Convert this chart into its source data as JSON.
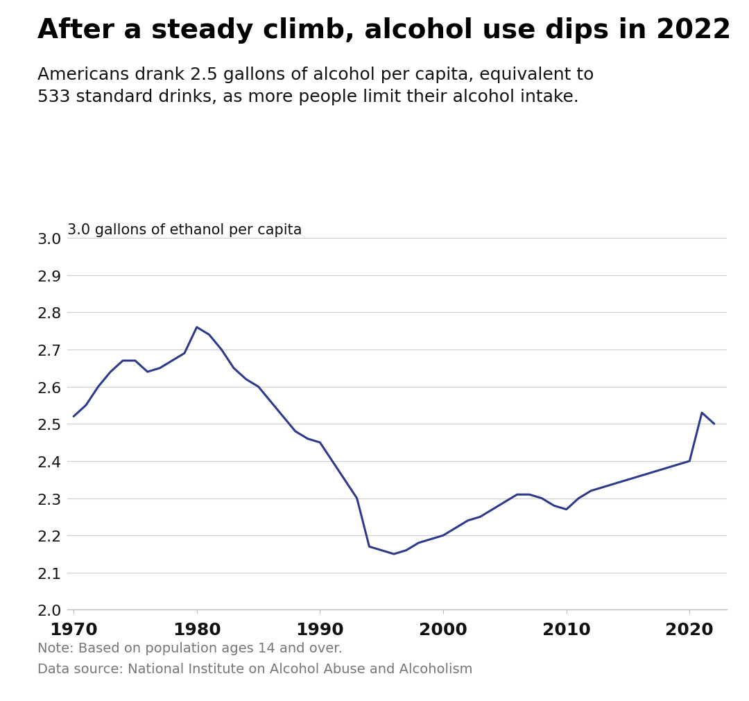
{
  "title": "After a steady climb, alcohol use dips in 2022",
  "subtitle": "Americans drank 2.5 gallons of alcohol per capita, equivalent to\n533 standard drinks, as more people limit their alcohol intake.",
  "ylabel": "3.0 gallons of ethanol per capita",
  "note": "Note: Based on population ages 14 and over.",
  "source": "Data source: National Institute on Alcohol Abuse and Alcoholism",
  "line_color": "#2d3a8c",
  "background_color": "#ffffff",
  "years": [
    1970,
    1971,
    1972,
    1973,
    1974,
    1975,
    1976,
    1977,
    1978,
    1979,
    1980,
    1981,
    1982,
    1983,
    1984,
    1985,
    1986,
    1987,
    1988,
    1989,
    1990,
    1991,
    1992,
    1993,
    1994,
    1995,
    1996,
    1997,
    1998,
    1999,
    2000,
    2001,
    2002,
    2003,
    2004,
    2005,
    2006,
    2007,
    2008,
    2009,
    2010,
    2011,
    2012,
    2013,
    2014,
    2015,
    2016,
    2017,
    2018,
    2019,
    2020,
    2021,
    2022
  ],
  "values": [
    2.52,
    2.55,
    2.6,
    2.64,
    2.67,
    2.67,
    2.64,
    2.65,
    2.67,
    2.69,
    2.76,
    2.74,
    2.7,
    2.65,
    2.62,
    2.6,
    2.56,
    2.52,
    2.48,
    2.46,
    2.45,
    2.4,
    2.35,
    2.3,
    2.17,
    2.16,
    2.15,
    2.16,
    2.18,
    2.19,
    2.2,
    2.22,
    2.24,
    2.25,
    2.27,
    2.29,
    2.31,
    2.31,
    2.3,
    2.28,
    2.27,
    2.3,
    2.32,
    2.33,
    2.34,
    2.35,
    2.36,
    2.37,
    2.38,
    2.39,
    2.4,
    2.53,
    2.5
  ],
  "xlim": [
    1969.5,
    2023
  ],
  "ylim": [
    2.0,
    3.0
  ],
  "yticks": [
    2.0,
    2.1,
    2.2,
    2.3,
    2.4,
    2.5,
    2.6,
    2.7,
    2.8,
    2.9,
    3.0
  ],
  "xticks": [
    1970,
    1980,
    1990,
    2000,
    2010,
    2020
  ],
  "title_fontsize": 28,
  "subtitle_fontsize": 18,
  "tick_fontsize": 16,
  "note_fontsize": 14,
  "ylabel_fontsize": 15,
  "line_width": 2.2
}
